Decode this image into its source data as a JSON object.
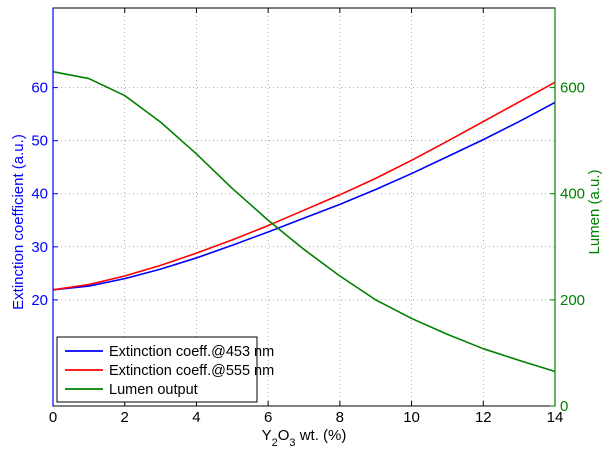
{
  "chart_data": {
    "type": "line",
    "xlabel": "Y2O3 wt. (%)",
    "xlabel_parts": {
      "base1": "Y",
      "sub1": "2",
      "base2": "O",
      "sub2": "3",
      "rest": " wt. (%)"
    },
    "ylabel_left": "Extinction coefficient (a.u.)",
    "ylabel_right": "Lumen (a.u.)",
    "xlim": [
      0,
      14
    ],
    "ylim_left": [
      0,
      75
    ],
    "ylim_right": [
      0,
      750
    ],
    "x_ticks": [
      "0",
      "2",
      "4",
      "6",
      "8",
      "10",
      "12",
      "14"
    ],
    "y_left_ticks": [
      "20",
      "30",
      "40",
      "50",
      "60"
    ],
    "y_right_ticks": [
      "0",
      "200",
      "400",
      "600"
    ],
    "grid": true,
    "legend_position": "bottom-left",
    "colors": {
      "left_axis": "#0000ff",
      "right_axis": "#008000",
      "series453": "#0000ff",
      "series555": "#ff0000",
      "lumen": "#008000"
    },
    "x": [
      0,
      1,
      2,
      3,
      4,
      5,
      6,
      7,
      8,
      9,
      10,
      11,
      12,
      13,
      14
    ],
    "series": [
      {
        "name": "Extinction coeff.@453 nm",
        "axis": "left",
        "values": [
          21.9,
          22.6,
          24.0,
          25.8,
          27.9,
          30.3,
          32.8,
          35.4,
          38.0,
          40.8,
          43.8,
          47.0,
          50.2,
          53.6,
          57.2
        ]
      },
      {
        "name": "Extinction coeff.@555 nm",
        "axis": "left",
        "values": [
          21.9,
          22.9,
          24.5,
          26.5,
          28.8,
          31.3,
          34.0,
          36.9,
          39.8,
          42.9,
          46.3,
          49.9,
          53.6,
          57.3,
          61.0
        ]
      },
      {
        "name": "Lumen output",
        "axis": "right",
        "values": [
          630,
          617,
          585,
          535,
          475,
          410,
          350,
          295,
          245,
          200,
          165,
          135,
          108,
          86,
          65
        ]
      }
    ]
  }
}
